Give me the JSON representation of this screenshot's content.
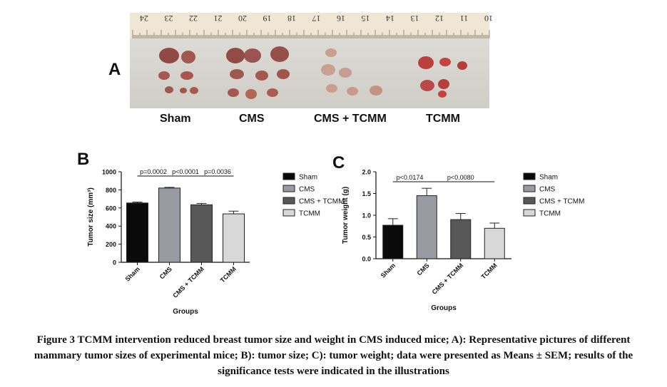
{
  "panels": {
    "a_label": "A",
    "b_label": "B",
    "c_label": "C"
  },
  "photo": {
    "ruler_numbers": [
      "24",
      "23",
      "22",
      "21",
      "20",
      "19",
      "18",
      "17",
      "16",
      "15",
      "14",
      "13",
      "12",
      "11",
      "10"
    ],
    "group_labels": [
      "Sham",
      "CMS",
      "CMS + TCMM",
      "TCMM"
    ]
  },
  "chart_data": [
    {
      "type": "bar",
      "panel": "B",
      "categories": [
        "Sham",
        "CMS",
        "CMS + TCMM",
        "TCMM"
      ],
      "values": [
        655,
        820,
        635,
        535
      ],
      "errors": [
        10,
        8,
        15,
        30
      ],
      "colors": [
        "#0a0a0a",
        "#9a9aa3",
        "#585858",
        "#d8d8d8"
      ],
      "xlabel": "Groups",
      "ylabel": "Tumor size (mm³)",
      "ylim": [
        0,
        1000
      ],
      "yticks": [
        "0",
        "200",
        "400",
        "600",
        "800",
        "1000"
      ],
      "legend": [
        "Sham",
        "CMS",
        "CMS + TCMM",
        "TCMM"
      ],
      "legend_position": "right",
      "annotations": [
        {
          "from": 0,
          "to": 1,
          "text": "p=0.0002"
        },
        {
          "from": 1,
          "to": 2,
          "text": "p<0.0001"
        },
        {
          "from": 2,
          "to": 3,
          "text": "p=0.0036"
        }
      ]
    },
    {
      "type": "bar",
      "panel": "C",
      "categories": [
        "Sham",
        "CMS",
        "CMS + TCMM",
        "TCMM"
      ],
      "values": [
        0.77,
        1.45,
        0.9,
        0.7
      ],
      "errors": [
        0.15,
        0.17,
        0.14,
        0.12
      ],
      "colors": [
        "#0a0a0a",
        "#9a9aa3",
        "#585858",
        "#d8d8d8"
      ],
      "xlabel": "Groups",
      "ylabel": "Tumor weight (g)",
      "ylim": [
        0,
        2.0
      ],
      "yticks": [
        "0.0",
        "0.5",
        "1.0",
        "1.5",
        "2.0"
      ],
      "legend": [
        "Sham",
        "CMS",
        "CMS + TCMM",
        "TCMM"
      ],
      "legend_position": "right",
      "annotations": [
        {
          "from": 0,
          "to": 1,
          "text": "p<0.0174"
        },
        {
          "from": 1,
          "to": 3,
          "text": "p<0.0080"
        }
      ]
    }
  ],
  "caption": "Figure 3 TCMM intervention reduced breast tumor size and weight in CMS induced mice; A): Representative pictures of different mammary tumor sizes of experimental mice; B): tumor size; C): tumor weight; data were presented as Means ± SEM; results of the significance tests were indicated in the illustrations"
}
